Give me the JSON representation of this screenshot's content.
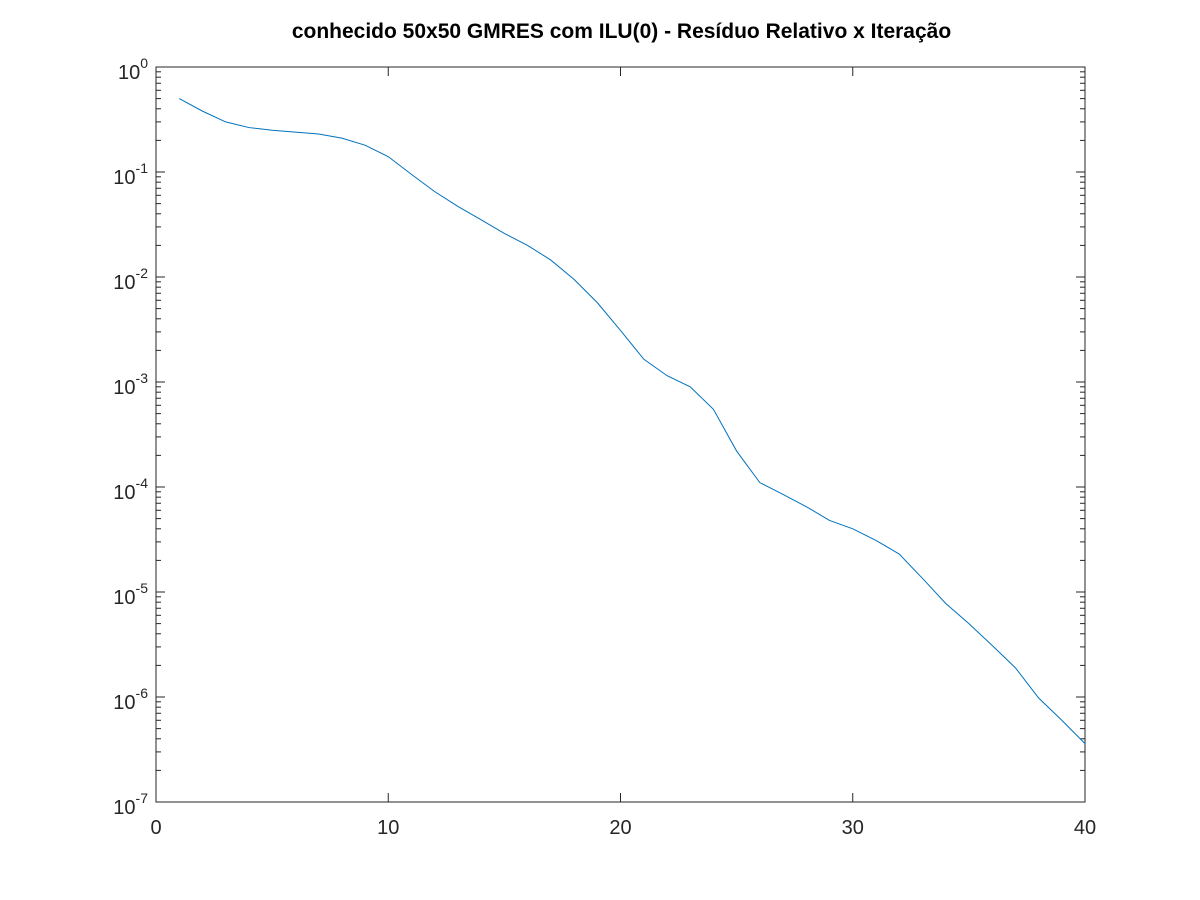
{
  "chart_data": {
    "type": "line",
    "title": "conhecido 50x50 GMRES com ILU(0) - Resíduo Relativo x Iteração",
    "xlabel": "",
    "ylabel": "",
    "xlim": [
      0,
      40
    ],
    "ylim": [
      1e-07,
      1
    ],
    "yscale": "log",
    "grid": false,
    "x_ticks": [
      0,
      10,
      20,
      30,
      40
    ],
    "y_ticks": [
      {
        "base": "10",
        "exp": "0",
        "value": 1
      },
      {
        "base": "10",
        "exp": "-1",
        "value": 0.1
      },
      {
        "base": "10",
        "exp": "-2",
        "value": 0.01
      },
      {
        "base": "10",
        "exp": "-3",
        "value": 0.001
      },
      {
        "base": "10",
        "exp": "-4",
        "value": 0.0001
      },
      {
        "base": "10",
        "exp": "-5",
        "value": 1e-05
      },
      {
        "base": "10",
        "exp": "-6",
        "value": 1e-06
      },
      {
        "base": "10",
        "exp": "-7",
        "value": 1e-07
      }
    ],
    "series": [
      {
        "color": "#0072bd",
        "x": [
          1,
          2,
          3,
          4,
          5,
          6,
          7,
          8,
          9,
          10,
          11,
          12,
          13,
          14,
          15,
          16,
          17,
          18,
          19,
          20,
          21,
          22,
          23,
          24,
          25,
          26,
          27,
          28,
          29,
          30,
          31,
          32,
          33,
          34,
          35,
          36,
          37,
          38,
          39,
          40
        ],
        "y": [
          0.5,
          0.38,
          0.3,
          0.265,
          0.25,
          0.24,
          0.23,
          0.21,
          0.18,
          0.14,
          0.095,
          0.065,
          0.047,
          0.035,
          0.026,
          0.02,
          0.0145,
          0.0095,
          0.0057,
          0.0031,
          0.00165,
          0.00115,
          0.0009,
          0.00055,
          0.00022,
          0.00011,
          8.5e-05,
          6.5e-05,
          4.8e-05,
          4e-05,
          3.1e-05,
          2.3e-05,
          1.35e-05,
          7.8e-06,
          5e-06,
          3.1e-06,
          1.9e-06,
          9.8e-07,
          6e-07,
          3.6e-07
        ]
      }
    ]
  }
}
